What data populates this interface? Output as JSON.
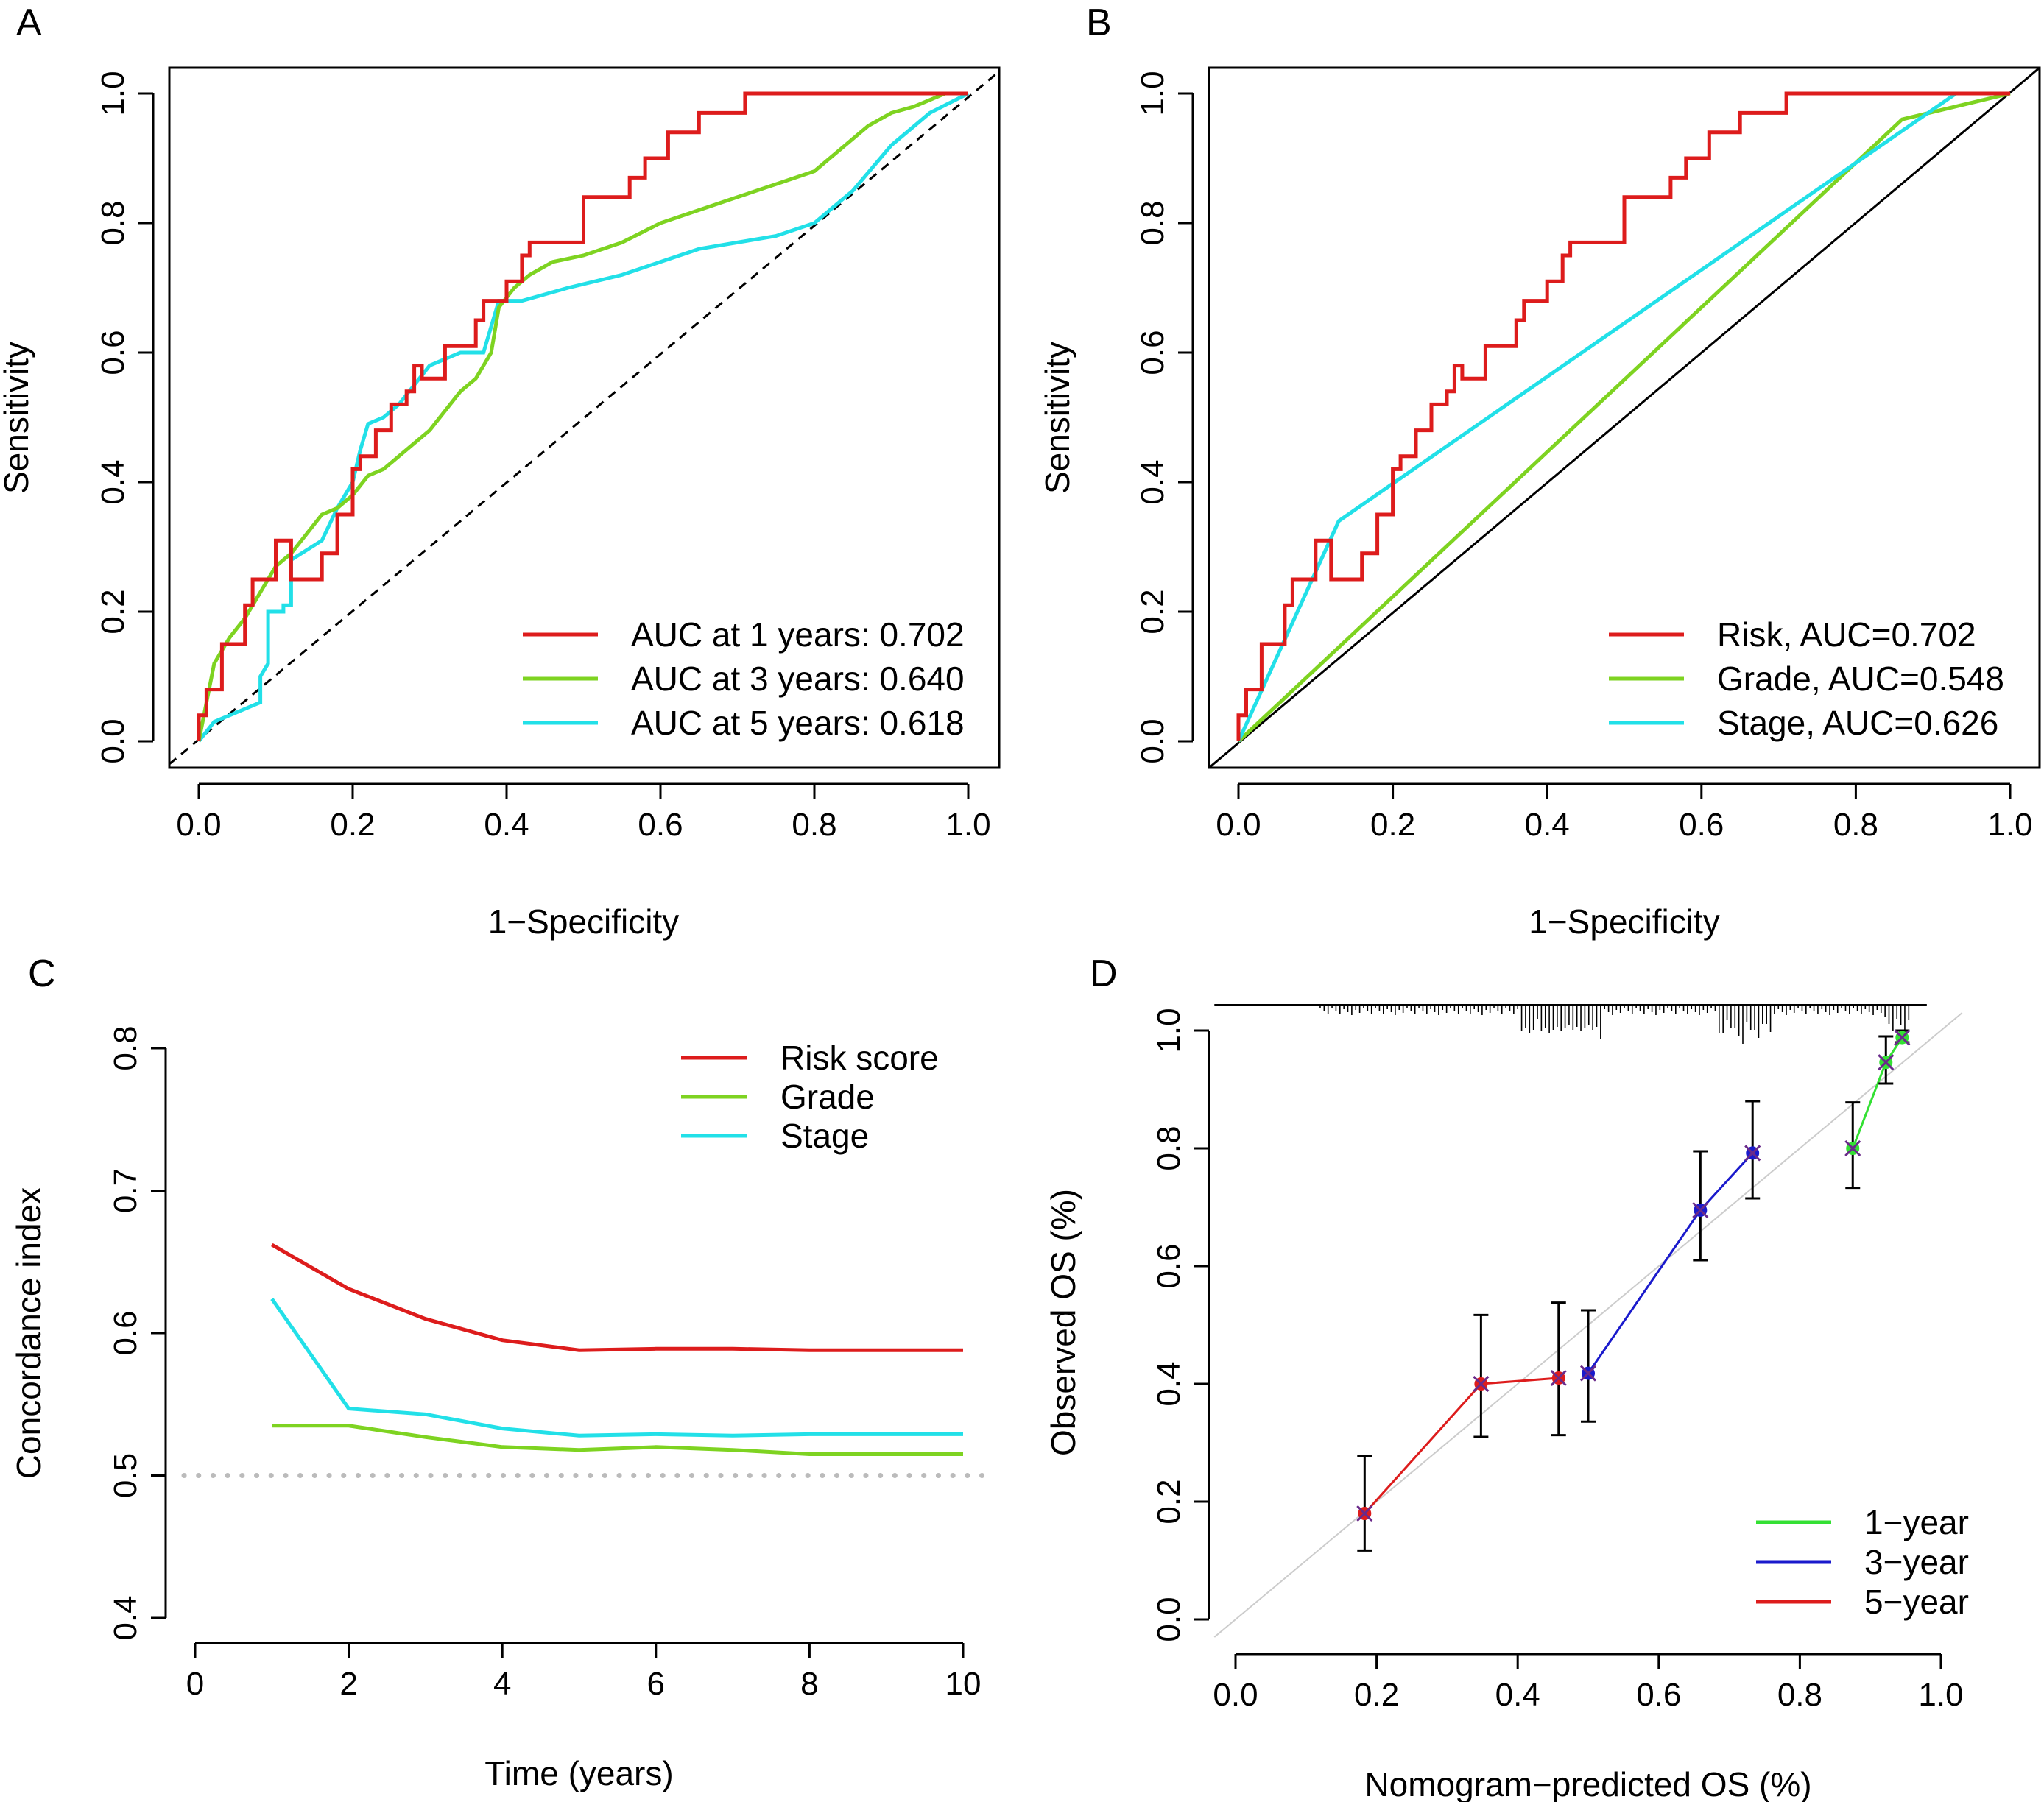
{
  "colors": {
    "red": "#dd1c1c",
    "green": "#7ed321",
    "cyan": "#22e0e8",
    "blue": "#1a1acc",
    "lime": "#33e033",
    "ref_gray": "#cccccc",
    "dot_gray": "#bbbbbb"
  },
  "chart_data": [
    {
      "panel": "A",
      "type": "line",
      "xlabel": "1−Specificity",
      "ylabel": "Sensitivity",
      "xlim": [
        0,
        1
      ],
      "ylim": [
        0,
        1
      ],
      "xticks": [
        "0.0",
        "0.2",
        "0.4",
        "0.6",
        "0.8",
        "1.0"
      ],
      "yticks": [
        "0.0",
        "0.2",
        "0.4",
        "0.6",
        "0.8",
        "1.0"
      ],
      "diagonal": "dashed",
      "legend_position": "bottom-right",
      "series": [
        {
          "name": "AUC at 1 years: 0.702",
          "color": "red",
          "x": [
            0,
            0,
            0.01,
            0.01,
            0.03,
            0.03,
            0.06,
            0.06,
            0.07,
            0.07,
            0.1,
            0.1,
            0.12,
            0.12,
            0.16,
            0.16,
            0.18,
            0.18,
            0.2,
            0.2,
            0.21,
            0.21,
            0.23,
            0.23,
            0.25,
            0.25,
            0.27,
            0.27,
            0.28,
            0.28,
            0.29,
            0.29,
            0.32,
            0.32,
            0.36,
            0.36,
            0.37,
            0.37,
            0.4,
            0.4,
            0.42,
            0.42,
            0.43,
            0.43,
            0.45,
            0.45,
            0.5,
            0.5,
            0.56,
            0.56,
            0.58,
            0.58,
            0.61,
            0.61,
            0.65,
            0.65,
            0.71,
            0.71,
            0.78,
            0.78,
            1
          ],
          "y": [
            0,
            0.04,
            0.04,
            0.08,
            0.08,
            0.15,
            0.15,
            0.21,
            0.21,
            0.25,
            0.25,
            0.31,
            0.31,
            0.25,
            0.25,
            0.29,
            0.29,
            0.35,
            0.35,
            0.42,
            0.42,
            0.44,
            0.44,
            0.48,
            0.48,
            0.52,
            0.52,
            0.54,
            0.54,
            0.58,
            0.58,
            0.56,
            0.56,
            0.61,
            0.61,
            0.65,
            0.65,
            0.68,
            0.68,
            0.71,
            0.71,
            0.75,
            0.75,
            0.77,
            0.77,
            0.77,
            0.77,
            0.84,
            0.84,
            0.87,
            0.87,
            0.9,
            0.9,
            0.94,
            0.94,
            0.97,
            0.97,
            1,
            1,
            1,
            1
          ]
        },
        {
          "name": "AUC at 3 years: 0.640",
          "color": "green",
          "x": [
            0,
            0.02,
            0.04,
            0.06,
            0.08,
            0.1,
            0.12,
            0.14,
            0.16,
            0.18,
            0.2,
            0.22,
            0.24,
            0.26,
            0.28,
            0.3,
            0.32,
            0.34,
            0.36,
            0.38,
            0.39,
            0.41,
            0.43,
            0.46,
            0.5,
            0.55,
            0.6,
            0.65,
            0.7,
            0.75,
            0.8,
            0.85,
            0.87,
            0.9,
            0.93,
            0.95,
            0.97,
            1
          ],
          "y": [
            0,
            0.12,
            0.16,
            0.19,
            0.23,
            0.27,
            0.29,
            0.32,
            0.35,
            0.36,
            0.38,
            0.41,
            0.42,
            0.44,
            0.46,
            0.48,
            0.51,
            0.54,
            0.56,
            0.6,
            0.67,
            0.7,
            0.72,
            0.74,
            0.75,
            0.77,
            0.8,
            0.82,
            0.84,
            0.86,
            0.88,
            0.93,
            0.95,
            0.97,
            0.98,
            0.99,
            1,
            1
          ]
        },
        {
          "name": "AUC at 5 years: 0.618",
          "color": "cyan",
          "x": [
            0,
            0.02,
            0.04,
            0.06,
            0.08,
            0.08,
            0.09,
            0.09,
            0.11,
            0.11,
            0.12,
            0.12,
            0.16,
            0.18,
            0.2,
            0.21,
            0.22,
            0.24,
            0.26,
            0.28,
            0.3,
            0.34,
            0.37,
            0.39,
            0.42,
            0.48,
            0.55,
            0.6,
            0.65,
            0.7,
            0.75,
            0.8,
            0.85,
            0.9,
            0.95,
            1
          ],
          "y": [
            0,
            0.03,
            0.04,
            0.05,
            0.06,
            0.1,
            0.12,
            0.2,
            0.2,
            0.21,
            0.21,
            0.28,
            0.31,
            0.36,
            0.4,
            0.45,
            0.49,
            0.5,
            0.52,
            0.55,
            0.58,
            0.6,
            0.6,
            0.68,
            0.68,
            0.7,
            0.72,
            0.74,
            0.76,
            0.77,
            0.78,
            0.8,
            0.85,
            0.92,
            0.97,
            1
          ]
        }
      ]
    },
    {
      "panel": "B",
      "type": "line",
      "xlabel": "1−Specificity",
      "ylabel": "Sensitivity",
      "xlim": [
        0,
        1
      ],
      "ylim": [
        0,
        1
      ],
      "xticks": [
        "0.0",
        "0.2",
        "0.4",
        "0.6",
        "0.8",
        "1.0"
      ],
      "yticks": [
        "0.0",
        "0.2",
        "0.4",
        "0.6",
        "0.8",
        "1.0"
      ],
      "diagonal": "solid",
      "legend_position": "bottom-right",
      "series": [
        {
          "name": "Risk, AUC=0.702",
          "color": "red",
          "x": [
            0,
            0,
            0.01,
            0.01,
            0.03,
            0.03,
            0.06,
            0.06,
            0.07,
            0.07,
            0.1,
            0.1,
            0.12,
            0.12,
            0.16,
            0.16,
            0.18,
            0.18,
            0.2,
            0.2,
            0.21,
            0.21,
            0.23,
            0.23,
            0.25,
            0.25,
            0.27,
            0.27,
            0.28,
            0.28,
            0.29,
            0.29,
            0.32,
            0.32,
            0.36,
            0.36,
            0.37,
            0.37,
            0.4,
            0.4,
            0.42,
            0.42,
            0.43,
            0.43,
            0.45,
            0.45,
            0.5,
            0.5,
            0.56,
            0.56,
            0.58,
            0.58,
            0.61,
            0.61,
            0.65,
            0.65,
            0.71,
            0.71,
            0.78,
            0.78,
            1
          ],
          "y": [
            0,
            0.04,
            0.04,
            0.08,
            0.08,
            0.15,
            0.15,
            0.21,
            0.21,
            0.25,
            0.25,
            0.31,
            0.31,
            0.25,
            0.25,
            0.29,
            0.29,
            0.35,
            0.35,
            0.42,
            0.42,
            0.44,
            0.44,
            0.48,
            0.48,
            0.52,
            0.52,
            0.54,
            0.54,
            0.58,
            0.58,
            0.56,
            0.56,
            0.61,
            0.61,
            0.65,
            0.65,
            0.68,
            0.68,
            0.71,
            0.71,
            0.75,
            0.75,
            0.77,
            0.77,
            0.77,
            0.77,
            0.84,
            0.84,
            0.87,
            0.87,
            0.9,
            0.9,
            0.94,
            0.94,
            0.97,
            0.97,
            1,
            1,
            1,
            1
          ]
        },
        {
          "name": "Grade, AUC=0.548",
          "color": "green",
          "x": [
            0,
            0.86,
            1
          ],
          "y": [
            0,
            0.96,
            1
          ]
        },
        {
          "name": "Stage, AUC=0.626",
          "color": "cyan",
          "x": [
            0,
            0.13,
            0.93,
            1
          ],
          "y": [
            0,
            0.34,
            1,
            1
          ]
        }
      ]
    },
    {
      "panel": "C",
      "type": "line",
      "xlabel": "Time (years)",
      "ylabel": "Concordance index",
      "xlim": [
        0,
        10
      ],
      "ylim": [
        0.4,
        0.8
      ],
      "xticks": [
        "0",
        "2",
        "4",
        "6",
        "8",
        "10"
      ],
      "yticks": [
        "0.4",
        "0.5",
        "0.6",
        "0.7",
        "0.8"
      ],
      "reference_line": {
        "y": 0.5,
        "style": "dotted"
      },
      "legend_position": "top-right",
      "series": [
        {
          "name": "Risk score",
          "color": "red",
          "x": [
            1,
            2,
            3,
            4,
            5,
            6,
            7,
            8,
            9,
            10
          ],
          "y": [
            0.662,
            0.631,
            0.61,
            0.595,
            0.588,
            0.589,
            0.589,
            0.588,
            0.588,
            0.588
          ]
        },
        {
          "name": "Grade",
          "color": "green",
          "x": [
            1,
            2,
            3,
            4,
            5,
            6,
            7,
            8,
            9,
            10
          ],
          "y": [
            0.535,
            0.535,
            0.527,
            0.52,
            0.518,
            0.52,
            0.518,
            0.515,
            0.515,
            0.515
          ]
        },
        {
          "name": "Stage",
          "color": "cyan",
          "x": [
            1,
            2,
            3,
            4,
            5,
            6,
            7,
            8,
            9,
            10
          ],
          "y": [
            0.624,
            0.547,
            0.543,
            0.533,
            0.528,
            0.529,
            0.528,
            0.529,
            0.529,
            0.529
          ]
        }
      ]
    },
    {
      "panel": "D",
      "type": "scatter",
      "xlabel": "Nomogram−predicted OS (%)",
      "ylabel": "Observed OS (%)",
      "xlim": [
        0,
        1
      ],
      "ylim": [
        0,
        1
      ],
      "xticks": [
        "0.0",
        "0.2",
        "0.4",
        "0.6",
        "0.8",
        "1.0"
      ],
      "yticks": [
        "0.0",
        "0.2",
        "0.4",
        "0.6",
        "0.8",
        "1.0"
      ],
      "reference_line": "diagonal",
      "legend_position": "bottom-right",
      "series": [
        {
          "name": "1−year",
          "color": "lime",
          "x": [
            0.875,
            0.922,
            0.945
          ],
          "y": [
            0.8,
            0.946,
            0.988
          ],
          "lo": [
            0.733,
            0.91,
            0.98
          ],
          "hi": [
            0.878,
            0.99,
            1.0
          ]
        },
        {
          "name": "3−year",
          "color": "blue",
          "x": [
            0.5,
            0.659,
            0.733
          ],
          "y": [
            0.418,
            0.695,
            0.792
          ],
          "lo": [
            0.336,
            0.61,
            0.715
          ],
          "hi": [
            0.525,
            0.795,
            0.88
          ]
        },
        {
          "name": "5−year",
          "color": "red",
          "x": [
            0.183,
            0.348,
            0.458
          ],
          "y": [
            0.18,
            0.4,
            0.41
          ],
          "lo": [
            0.117,
            0.31,
            0.313
          ],
          "hi": [
            0.278,
            0.517,
            0.538
          ]
        }
      ]
    }
  ],
  "panel_labels": {
    "a": "A",
    "b": "B",
    "c": "C",
    "d": "D"
  }
}
